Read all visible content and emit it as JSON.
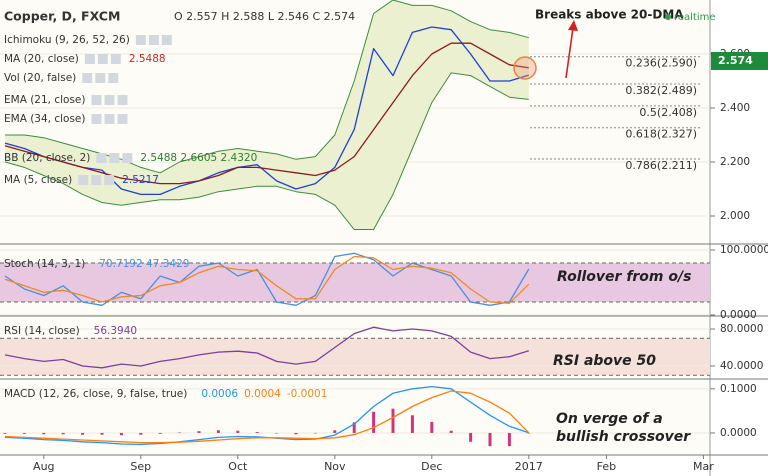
{
  "chart_data": [
    {
      "type": "line",
      "title": "Copper, D, FXCM",
      "ohlc": "O 2.557 H 2.588 L 2.546 C 2.574",
      "indicators": [
        "Ichimoku (9, 26, 52, 26)",
        "Vol (20, false)",
        "EMA (21, close)",
        "EMA (34, close)"
      ],
      "series": [
        {
          "name": "MA (5, close)",
          "readout": "2.5217",
          "color": "#1f3fd6",
          "values": [
            2.27,
            2.25,
            2.22,
            2.2,
            2.18,
            2.17,
            2.1,
            2.08,
            2.08,
            2.11,
            2.13,
            2.16,
            2.18,
            2.19,
            2.13,
            2.1,
            2.12,
            2.18,
            2.32,
            2.62,
            2.52,
            2.68,
            2.7,
            2.69,
            2.6,
            2.5,
            2.5,
            2.5217,
            null,
            null,
            null,
            null,
            null,
            null,
            null,
            null,
            null
          ]
        },
        {
          "name": "MA (20, close)",
          "readout": "2.5488",
          "color": "#8b1c1c",
          "values": [
            2.26,
            2.24,
            2.22,
            2.2,
            2.18,
            2.16,
            2.14,
            2.13,
            2.12,
            2.12,
            2.13,
            2.15,
            2.18,
            2.18,
            2.17,
            2.16,
            2.15,
            2.17,
            2.22,
            2.32,
            2.42,
            2.52,
            2.6,
            2.64,
            2.64,
            2.6,
            2.56,
            2.5488,
            null,
            null,
            null,
            null,
            null,
            null,
            null,
            null,
            null
          ]
        }
      ],
      "band": {
        "name": "BB (20, close, 2)",
        "readout": "2.5488 2.6605 2.4320",
        "color": "#3d8b3d",
        "fill": "#e9efcc",
        "upper": [
          2.3,
          2.3,
          2.29,
          2.27,
          2.25,
          2.23,
          2.21,
          2.18,
          2.16,
          2.2,
          2.22,
          2.24,
          2.25,
          2.24,
          2.23,
          2.21,
          2.22,
          2.3,
          2.5,
          2.75,
          2.8,
          2.78,
          2.78,
          2.76,
          2.72,
          2.69,
          2.68,
          2.6605,
          null,
          null,
          null,
          null,
          null,
          null,
          null,
          null,
          null
        ],
        "lower": [
          2.2,
          2.18,
          2.15,
          2.12,
          2.08,
          2.05,
          2.04,
          2.05,
          2.06,
          2.06,
          2.07,
          2.09,
          2.1,
          2.11,
          2.11,
          2.09,
          2.08,
          2.04,
          1.95,
          1.95,
          2.08,
          2.25,
          2.42,
          2.53,
          2.52,
          2.48,
          2.44,
          2.432,
          null,
          null,
          null,
          null,
          null,
          null,
          null,
          null,
          null
        ]
      },
      "fib_levels": [
        {
          "value": 2.59,
          "label": "0.236(2.590)"
        },
        {
          "value": 2.489,
          "label": "0.382(2.489)"
        },
        {
          "value": 2.408,
          "label": "0.5(2.408)"
        },
        {
          "value": 2.327,
          "label": "0.618(2.327)"
        },
        {
          "value": 2.211,
          "label": "0.786(2.211)"
        }
      ],
      "last_price": 2.574,
      "last_price_color": "#1e8a3c",
      "ylim": [
        1.9,
        2.8
      ],
      "yticks": [
        {
          "value": 2,
          "label": "2.000"
        },
        {
          "value": 2.2,
          "label": "2.200"
        },
        {
          "value": 2.4,
          "label": "2.400"
        },
        {
          "value": 2.6,
          "label": "2.600"
        }
      ],
      "annotation": "Breaks above 20-DMA",
      "status": "realtime"
    },
    {
      "type": "line",
      "title": "Stoch (14, 3, 1)",
      "readout": "70.7192 47.3429",
      "series": [
        {
          "color": "#4a8fe0",
          "values": [
            60,
            40,
            30,
            45,
            20,
            15,
            35,
            25,
            60,
            50,
            75,
            80,
            60,
            70,
            20,
            15,
            30,
            90,
            95,
            85,
            60,
            80,
            70,
            60,
            20,
            15,
            20,
            70.7192,
            null,
            null,
            null,
            null,
            null,
            null,
            null,
            null,
            null
          ]
        },
        {
          "color": "#f08a24",
          "values": [
            55,
            45,
            35,
            38,
            30,
            20,
            28,
            30,
            45,
            50,
            65,
            75,
            70,
            68,
            45,
            25,
            25,
            70,
            90,
            88,
            70,
            75,
            72,
            65,
            40,
            20,
            18,
            47.3429,
            null,
            null,
            null,
            null,
            null,
            null,
            null,
            null,
            null
          ]
        }
      ],
      "zone": [
        20,
        80
      ],
      "zone_color": "#e8c8e0",
      "ylim": [
        0,
        100
      ],
      "yticks": [
        {
          "value": 0,
          "label": "0.0000"
        },
        {
          "value": 100,
          "label": "100.0000"
        }
      ],
      "annotation": "Rollover from o/s"
    },
    {
      "type": "line",
      "title": "RSI (14, close)",
      "readout": "56.3940",
      "series": [
        {
          "color": "#7b3f9e",
          "values": [
            52,
            48,
            45,
            47,
            40,
            38,
            42,
            40,
            45,
            48,
            52,
            55,
            56,
            54,
            45,
            42,
            45,
            60,
            75,
            82,
            78,
            80,
            78,
            72,
            55,
            48,
            50,
            56.394,
            null,
            null,
            null,
            null,
            null,
            null,
            null,
            null,
            null
          ]
        }
      ],
      "zone": [
        30,
        70
      ],
      "zone_color": "#f6e0da",
      "ylim": [
        27,
        93
      ],
      "yticks": [
        {
          "value": 40,
          "label": "40.0000"
        },
        {
          "value": 80,
          "label": "80.0000"
        }
      ],
      "annotation": "RSI above 50"
    },
    {
      "type": "line",
      "title": "MACD (12, 26, close, 9, false, true)",
      "categories": [
        null,
        null,
        "Aug",
        null,
        null,
        null,
        null,
        "Sep",
        null,
        null,
        null,
        null,
        "Oct",
        null,
        null,
        null,
        null,
        "Nov",
        null,
        null,
        null,
        null,
        "Dec",
        null,
        null,
        null,
        null,
        "2017",
        null,
        null,
        null,
        "Feb",
        null,
        null,
        null,
        null,
        "Mar"
      ],
      "histogram": {
        "color": "#d0357a",
        "readout": "-0.0001",
        "values": [
          -0.002,
          -0.002,
          -0.003,
          -0.003,
          -0.004,
          -0.004,
          -0.005,
          -0.004,
          -0.002,
          0.001,
          0.004,
          0.006,
          0.005,
          0.002,
          -0.001,
          -0.003,
          -0.001,
          0.006,
          0.024,
          0.048,
          0.055,
          0.04,
          0.025,
          0.005,
          -0.02,
          -0.03,
          -0.03,
          -0.0001,
          null,
          null,
          null,
          null,
          null,
          null,
          null,
          null,
          null
        ]
      },
      "series": [
        {
          "color": "#2196f3",
          "readout": "0.0006",
          "values": [
            -0.01,
            -0.012,
            -0.015,
            -0.017,
            -0.02,
            -0.022,
            -0.025,
            -0.026,
            -0.024,
            -0.02,
            -0.015,
            -0.01,
            -0.008,
            -0.009,
            -0.012,
            -0.015,
            -0.014,
            -0.005,
            0.02,
            0.06,
            0.09,
            0.1,
            0.105,
            0.1,
            0.07,
            0.04,
            0.015,
            0.0006,
            null,
            null,
            null,
            null,
            null,
            null,
            null,
            null,
            null
          ]
        },
        {
          "color": "#ff7f0e",
          "readout": "0.0004",
          "values": [
            -0.008,
            -0.01,
            -0.012,
            -0.014,
            -0.016,
            -0.018,
            -0.02,
            -0.022,
            -0.022,
            -0.021,
            -0.019,
            -0.016,
            -0.013,
            -0.011,
            -0.011,
            -0.012,
            -0.013,
            -0.011,
            -0.004,
            0.012,
            0.035,
            0.06,
            0.08,
            0.095,
            0.09,
            0.07,
            0.045,
            0.0004,
            null,
            null,
            null,
            null,
            null,
            null,
            null,
            null,
            null
          ]
        }
      ],
      "ylim": [
        -0.05,
        0.12
      ],
      "yticks": [
        {
          "value": 0,
          "label": "0.0000"
        },
        {
          "value": 0.1,
          "label": "0.1000"
        }
      ],
      "annotation": [
        "On verge of a",
        "bullish crossover"
      ]
    }
  ]
}
